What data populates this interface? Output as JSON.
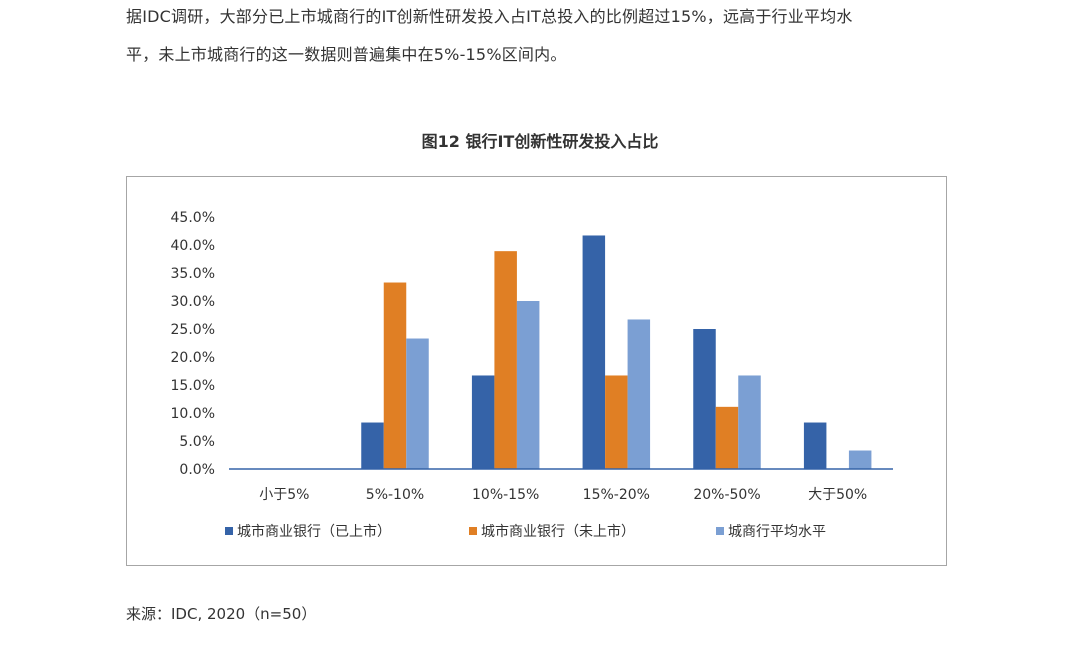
{
  "document": {
    "paragraph_line1": "据IDC调研，大部分已上市城商行的IT创新性研发投入占IT总投入的比例超过15%，远高于行业平均水",
    "paragraph_line2": "平，未上市城商行的这一数据则普遍集中在5%-15%区间内。",
    "source": "来源：IDC, 2020（n=50）"
  },
  "chart_data": {
    "type": "bar",
    "title": "图12  银行IT创新性研发投入占比",
    "xlabel": "",
    "ylabel": "",
    "categories": [
      "小于5%",
      "5%-10%",
      "10%-15%",
      "15%-20%",
      "20%-50%",
      "大于50%"
    ],
    "series": [
      {
        "name": "城市商业银行（已上市）",
        "color": "#3563a8",
        "values": [
          0.0,
          8.3,
          16.7,
          41.7,
          25.0,
          8.3
        ]
      },
      {
        "name": "城市商业银行（未上市）",
        "color": "#e07f24",
        "values": [
          0.0,
          33.3,
          38.9,
          16.7,
          11.1,
          0.0
        ]
      },
      {
        "name": "城商行平均水平",
        "color": "#7b9fd3",
        "values": [
          0.0,
          23.3,
          30.0,
          26.7,
          16.7,
          3.3
        ]
      }
    ],
    "ylim": [
      0,
      45
    ],
    "yticks": [
      "0.0%",
      "5.0%",
      "10.0%",
      "15.0%",
      "20.0%",
      "25.0%",
      "30.0%",
      "35.0%",
      "40.0%",
      "45.0%"
    ],
    "grid": false,
    "legend_position": "bottom"
  }
}
